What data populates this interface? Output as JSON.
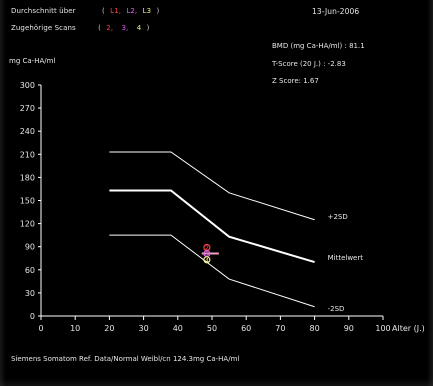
{
  "header": {
    "avg_label": "Durchschnitt über",
    "avg_values": [
      "L1,",
      "L2,",
      "L3"
    ],
    "scans_label": "Zugehörige Scans",
    "scans_values": [
      "2,",
      "3,",
      "4"
    ],
    "open_paren": "(",
    "close_paren": ")",
    "date": "13-Jun-2006"
  },
  "results": {
    "bmd": "BMD (mg Ca-HA/ml) : 81.1",
    "tscore": "T-Score (20 J.) : -2.83",
    "zscore": "Z Score:  1.67"
  },
  "footer": "Siemens Somatom Ref. Data/Normal Weibl/cn 124.3mg Ca-HA/ml",
  "colors": {
    "background": "#000000",
    "line": "#ffffff",
    "marker_red": "#ff4040",
    "marker_magenta": "#e060f0",
    "marker_yellow": "#f0f080"
  },
  "chart_data": {
    "type": "line",
    "ylabel": "mg Ca-HA/ml",
    "xlabel": "Alter (J.)",
    "xlim": [
      0,
      100
    ],
    "ylim": [
      0,
      300
    ],
    "xticks": [
      0,
      10,
      20,
      30,
      40,
      50,
      60,
      70,
      80,
      90,
      100
    ],
    "yticks": [
      0,
      30,
      60,
      90,
      120,
      150,
      180,
      210,
      240,
      270,
      300
    ],
    "xtick_labels": [
      "0",
      "10",
      "20",
      "30",
      "40",
      "50",
      "60",
      "70",
      "80",
      "90",
      "100"
    ],
    "ytick_labels": [
      "0",
      "30",
      "60",
      "90",
      "120",
      "150",
      "180",
      "210",
      "240",
      "270",
      "300"
    ],
    "grid": false,
    "series": [
      {
        "name": "+2SD",
        "x": [
          20,
          38,
          55,
          80
        ],
        "y": [
          213,
          213,
          160,
          125
        ]
      },
      {
        "name": "Mittelwert",
        "x": [
          20,
          38,
          55,
          80
        ],
        "y": [
          163,
          163,
          103,
          70
        ]
      },
      {
        "name": "-2SD",
        "x": [
          20,
          38,
          55,
          80
        ],
        "y": [
          105,
          105,
          48,
          12
        ]
      }
    ],
    "points": [
      {
        "label": "2",
        "x": 48.5,
        "y": 89,
        "color": "#ff4040"
      },
      {
        "label": "3",
        "x": 48.5,
        "y": 81,
        "color": "#e060f0"
      },
      {
        "label": "4",
        "x": 48.5,
        "y": 73,
        "color": "#f0f080"
      }
    ],
    "mean_measurement": {
      "x": 49,
      "y": 81.1,
      "x_span": [
        47,
        52
      ]
    }
  }
}
